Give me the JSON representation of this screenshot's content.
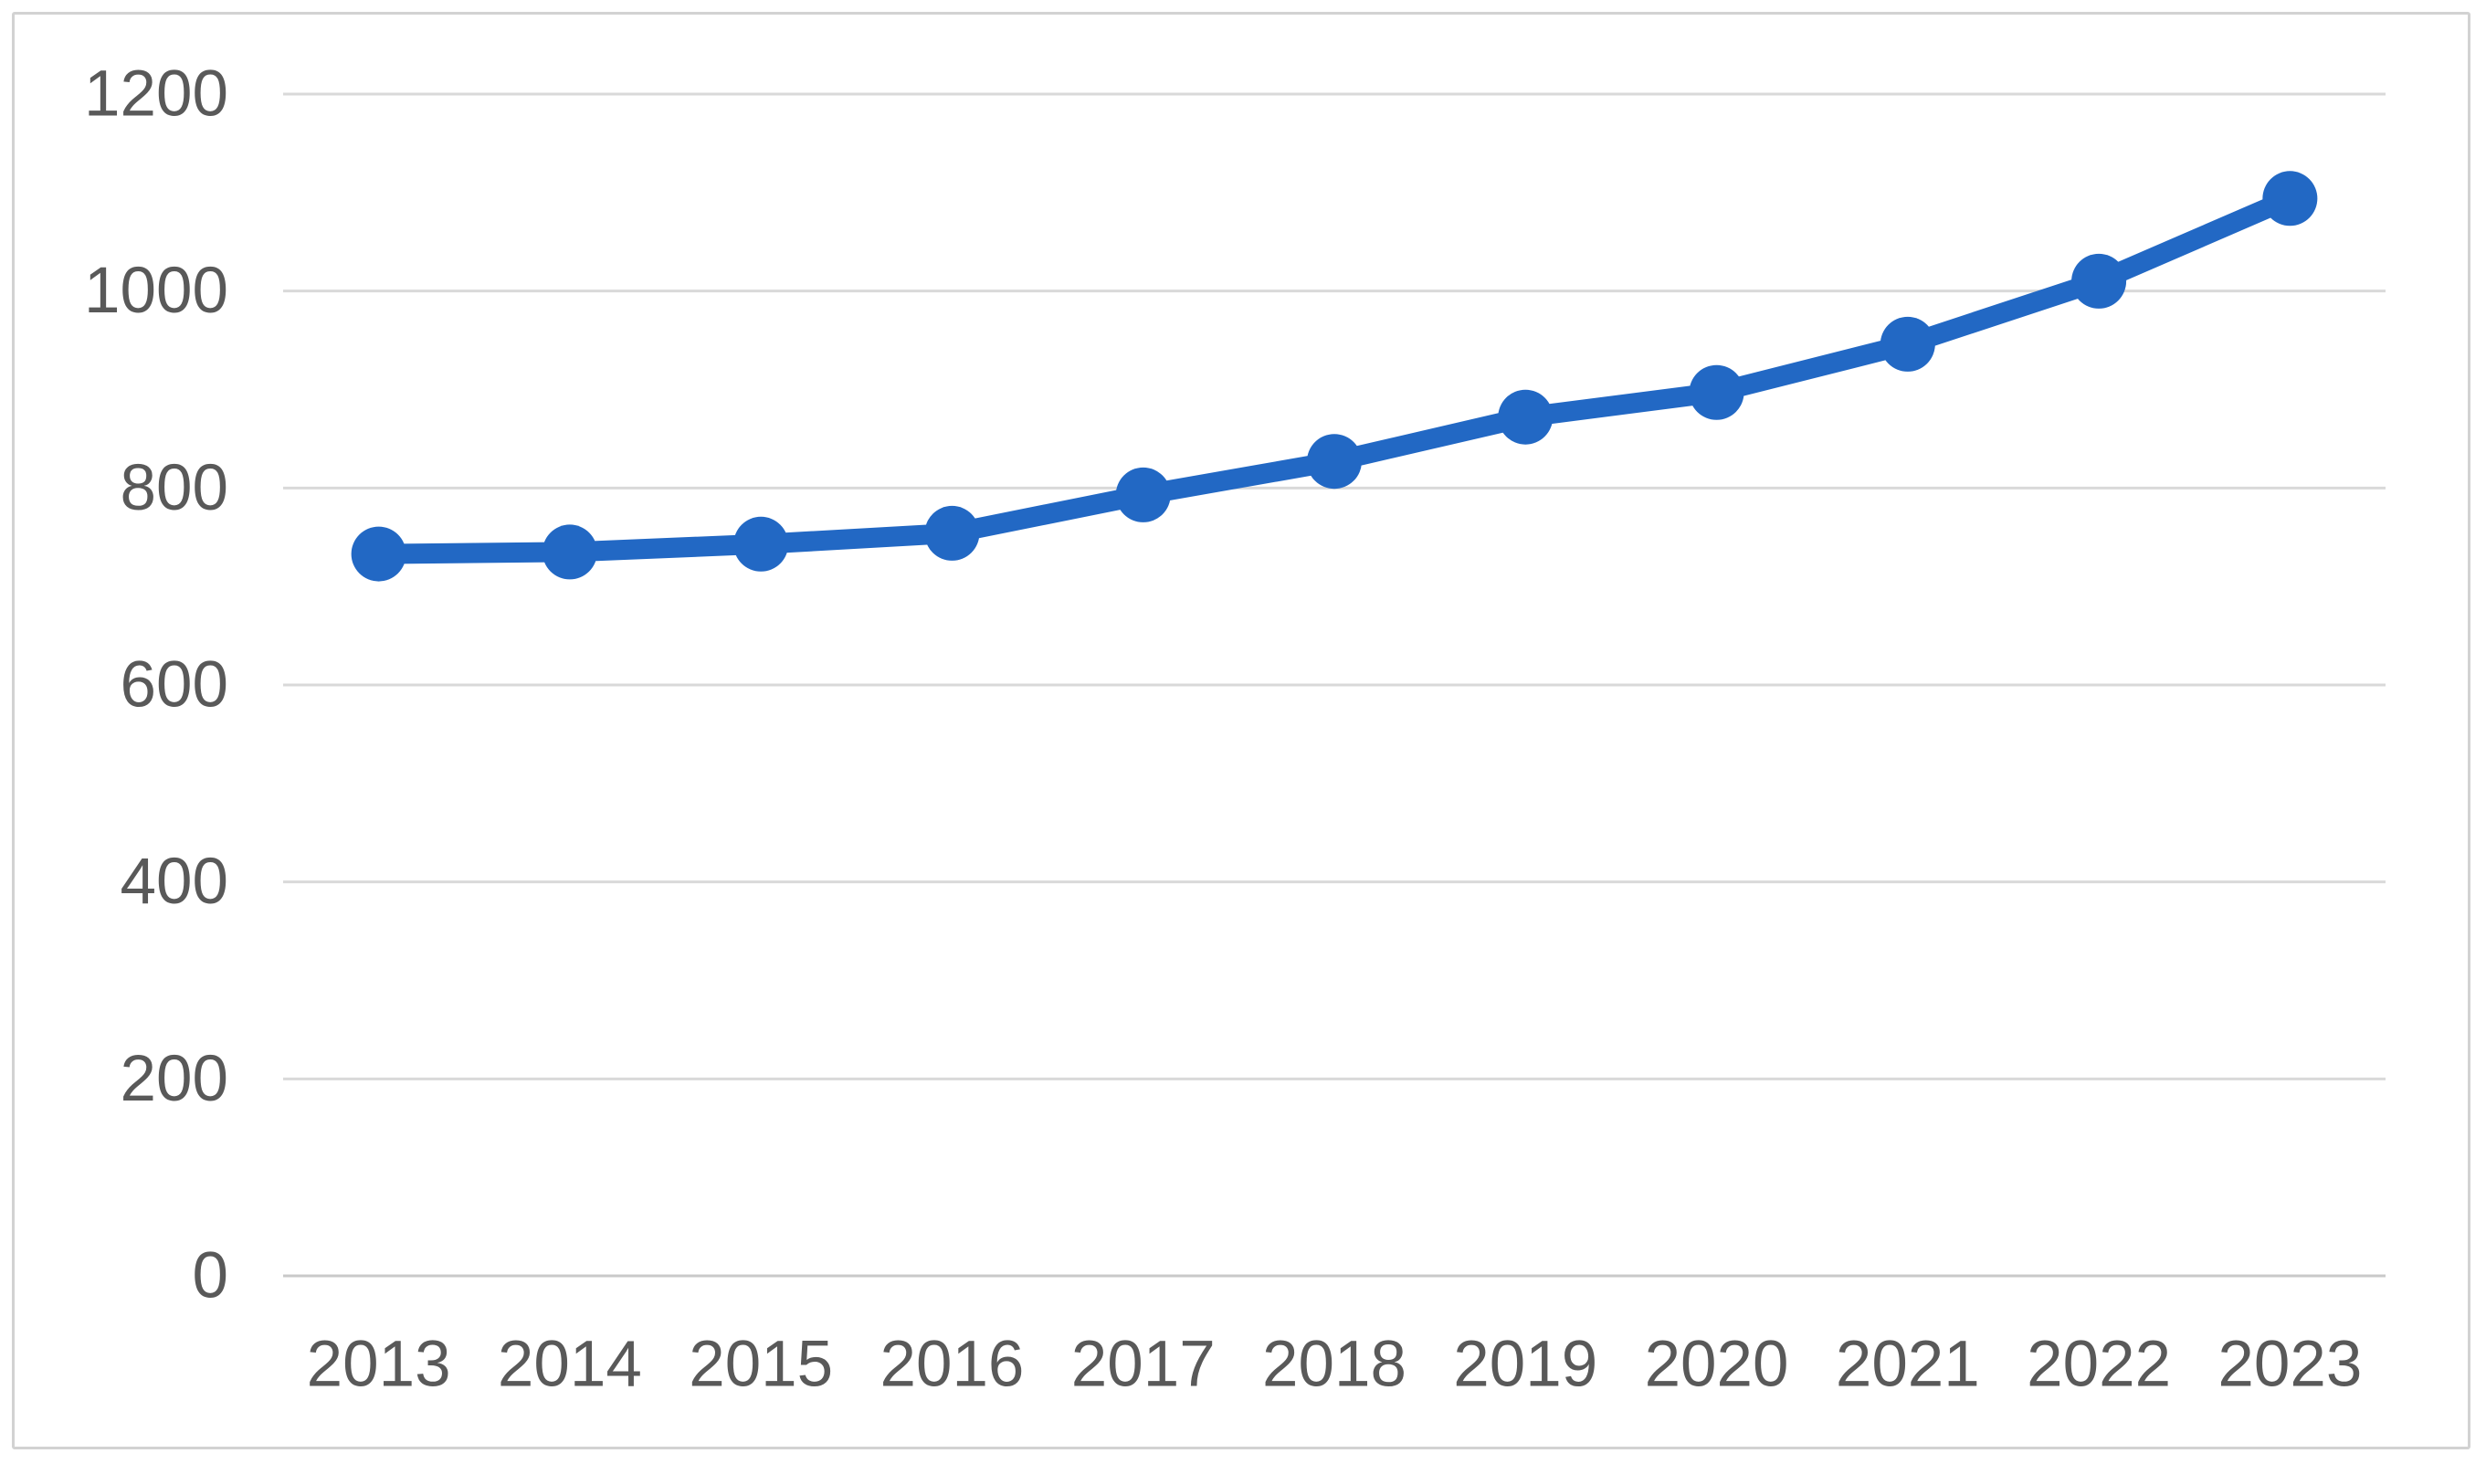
{
  "chart_data": {
    "type": "line",
    "title": "",
    "xlabel": "",
    "ylabel": "",
    "categories": [
      "2013",
      "2014",
      "2015",
      "2016",
      "2017",
      "2018",
      "2019",
      "2020",
      "2021",
      "2022",
      "2023"
    ],
    "series": [
      {
        "name": "",
        "values": [
          733,
          735,
          743,
          754,
          793,
          827,
          872,
          897,
          946,
          1010,
          1094
        ],
        "line_color": "#2268c4",
        "marker": "circle"
      }
    ],
    "ylim": [
      0,
      1200
    ],
    "yticks": [
      0,
      200,
      400,
      600,
      800,
      1000,
      1200
    ],
    "grid": true,
    "legend_position": "none"
  },
  "colors": {
    "line_blue": "#2268c4",
    "gridline_gray": "#d9d9d9",
    "axis_line_gray": "#c9c9c9",
    "tick_label_gray": "#595959",
    "frame_border_gray": "#d2d2d2",
    "background": "#ffffff"
  }
}
